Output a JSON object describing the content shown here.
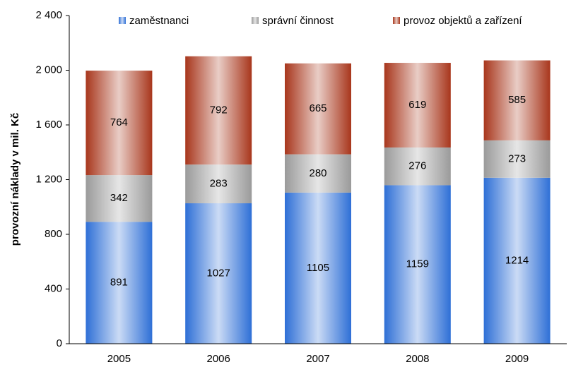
{
  "chart_data": {
    "type": "stacked_bar",
    "y_axis_label": "provozní náklady v mil. Kč",
    "categories": [
      "2005",
      "2006",
      "2007",
      "2008",
      "2009"
    ],
    "series": [
      {
        "name": "zaměstnanci",
        "color": "#2e6fd6",
        "values": [
          891,
          1027,
          1105,
          1159,
          1214
        ]
      },
      {
        "name": "správní činnost",
        "color": "#9a9a9a",
        "values": [
          342,
          283,
          280,
          276,
          273
        ]
      },
      {
        "name": "provoz objektů a zařízení",
        "color": "#a8361c",
        "values": [
          764,
          792,
          665,
          619,
          585
        ]
      }
    ],
    "ylim": [
      0,
      2400
    ],
    "yticks": [
      0,
      400,
      800,
      {
        "value": 1200,
        "label": "1 200"
      },
      {
        "value": 1600,
        "label": "1 600"
      },
      {
        "value": 2000,
        "label": "2 000"
      },
      {
        "value": 2400,
        "label": "2 400"
      }
    ],
    "legend": "top"
  }
}
